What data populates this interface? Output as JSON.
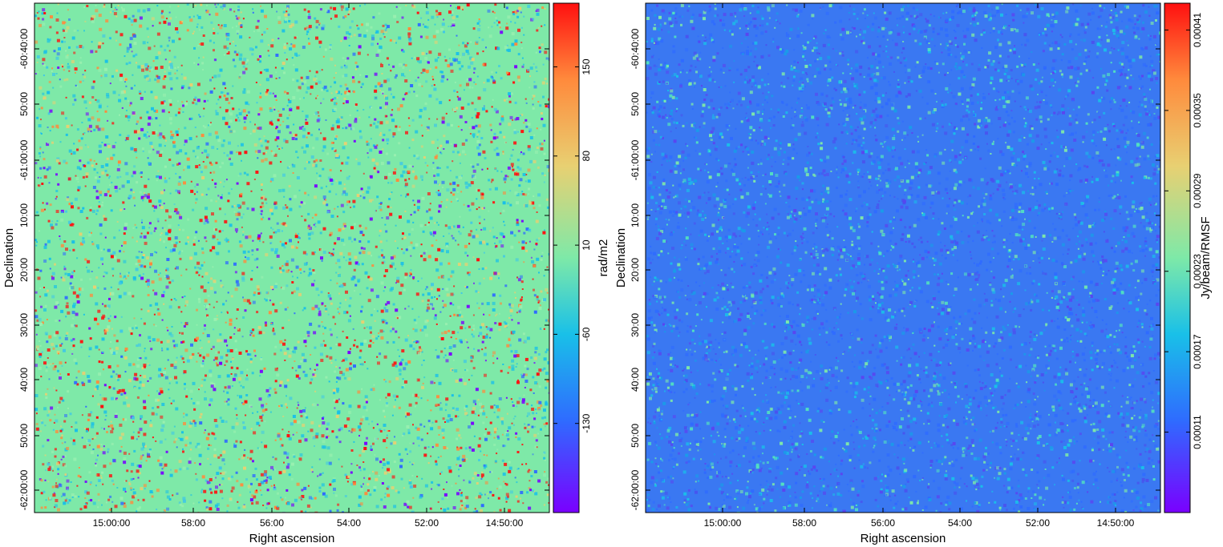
{
  "chart_data": [
    {
      "type": "heatmap",
      "xlabel": "Right ascension",
      "ylabel": "Declination",
      "x_ticks": [
        "15:00:00",
        "58:00",
        "56:00",
        "54:00",
        "52:00",
        "14:50:00"
      ],
      "y_ticks": [
        "-60:40:00",
        "50:00",
        "-61:00:00",
        "10:00",
        "20:00",
        "30:00",
        "40:00",
        "50:00",
        "-62:00:00"
      ],
      "colorbar": {
        "label": "rad/m2",
        "ticks": [
          150,
          80,
          10,
          -60,
          -130
        ],
        "range": [
          -200,
          200
        ],
        "colormap": "rainbow"
      },
      "background_color": "#7ee9a8"
    },
    {
      "type": "heatmap",
      "xlabel": "Right ascension",
      "ylabel": "Declination",
      "x_ticks": [
        "15:00:00",
        "58:00",
        "56:00",
        "54:00",
        "52:00",
        "14:50:00"
      ],
      "y_ticks": [
        "-60:40:00",
        "50:00",
        "-61:00:00",
        "10:00",
        "20:00",
        "30:00",
        "40:00",
        "50:00",
        "-62:00:00"
      ],
      "colorbar": {
        "label": "Jy/beam/RMSF",
        "ticks": [
          "0.00041",
          "0.00035",
          "0.00029",
          "0.00023",
          "0.00017",
          "0.00011"
        ],
        "range": [
          5e-05,
          0.00043
        ],
        "colormap": "rainbow"
      },
      "background_color": "#3a78f2"
    }
  ]
}
